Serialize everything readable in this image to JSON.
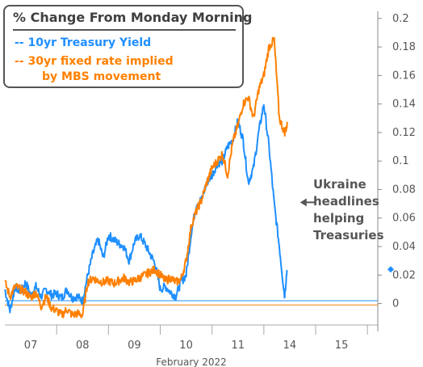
{
  "chart_data": {
    "type": "line",
    "title": "% Change From Monday Morning",
    "xlabel": "February 2022",
    "ylabel": "",
    "x_ticks": [
      "07",
      "08",
      "09",
      "10",
      "11",
      "14",
      "15"
    ],
    "x_tick_positions": [
      0.5,
      1.5,
      2.5,
      3.5,
      4.5,
      5.5,
      6.5
    ],
    "xlim": [
      0,
      7.2
    ],
    "ylim": [
      -0.015,
      0.205
    ],
    "y_ticks": [
      0,
      0.02,
      0.04,
      0.06,
      0.08,
      0.1,
      0.12,
      0.14,
      0.16,
      0.18,
      0.2
    ],
    "y_tick_labels": [
      "0",
      "0.02",
      "0.04",
      "0.06",
      "0.08",
      "0.1",
      "0.12",
      "0.14",
      "0.16",
      "0.18",
      "0.2"
    ],
    "grid": false,
    "legend_position": "top-left",
    "zero_lines": [
      {
        "y": 0.002,
        "color": "#1f8fff"
      },
      {
        "y": -0.001,
        "color": "#ff8000"
      }
    ],
    "annotation": {
      "text": "Ukraine headlines helping Treasuries",
      "lines": [
        "Ukraine",
        "headlines",
        "helping",
        "Treasuries"
      ],
      "arrow_target": {
        "x": 5.7,
        "y": 0.071
      }
    },
    "end_marker": {
      "x": 7.2,
      "y": 0.024,
      "color": "#1f8fff"
    },
    "series": [
      {
        "name": "10yr Treasury Yield",
        "legend_label": "--  10yr Treasury Yield",
        "color": "#1f8fff",
        "x": [
          0.0,
          0.1,
          0.2,
          0.3,
          0.4,
          0.5,
          0.6,
          0.7,
          0.8,
          0.9,
          1.0,
          1.1,
          1.2,
          1.3,
          1.4,
          1.5,
          1.6,
          1.7,
          1.8,
          1.9,
          2.0,
          2.1,
          2.2,
          2.3,
          2.4,
          2.5,
          2.6,
          2.7,
          2.8,
          2.9,
          3.0,
          3.1,
          3.2,
          3.3,
          3.4,
          3.5,
          3.6,
          3.7,
          3.8,
          3.9,
          4.0,
          4.1,
          4.2,
          4.3,
          4.4,
          4.5,
          4.6,
          4.7,
          4.8,
          4.9,
          5.0,
          5.1,
          5.2,
          5.3,
          5.4,
          5.45
        ],
        "y": [
          0.01,
          -0.005,
          0.012,
          0.008,
          0.015,
          0.006,
          0.012,
          0.005,
          0.01,
          0.006,
          0.007,
          0.004,
          0.01,
          0.004,
          0.005,
          0.002,
          0.02,
          0.035,
          0.045,
          0.032,
          0.048,
          0.045,
          0.042,
          0.04,
          0.03,
          0.043,
          0.048,
          0.042,
          0.035,
          0.028,
          0.01,
          0.012,
          0.008,
          0.005,
          0.015,
          0.02,
          0.05,
          0.07,
          0.073,
          0.085,
          0.09,
          0.098,
          0.1,
          0.11,
          0.115,
          0.128,
          0.115,
          0.085,
          0.095,
          0.12,
          0.14,
          0.11,
          0.07,
          0.04,
          0.005,
          0.025
        ]
      },
      {
        "name": "30yr fixed rate implied by MBS movement",
        "legend_label": "--  30yr fixed rate implied",
        "legend_label_2": "by MBS movement",
        "color": "#ff8000",
        "x": [
          0.0,
          0.1,
          0.2,
          0.3,
          0.4,
          0.5,
          0.6,
          0.7,
          0.8,
          0.9,
          1.0,
          1.1,
          1.2,
          1.3,
          1.4,
          1.5,
          1.6,
          1.7,
          1.8,
          1.9,
          2.0,
          2.1,
          2.2,
          2.3,
          2.4,
          2.5,
          2.6,
          2.7,
          2.8,
          2.9,
          3.0,
          3.1,
          3.2,
          3.3,
          3.4,
          3.5,
          3.6,
          3.7,
          3.8,
          3.9,
          4.0,
          4.1,
          4.2,
          4.3,
          4.4,
          4.5,
          4.6,
          4.7,
          4.8,
          4.9,
          5.0,
          5.1,
          5.2,
          5.3,
          5.4,
          5.45
        ],
        "y": [
          0.015,
          0.005,
          0.012,
          0.01,
          0.008,
          0.004,
          0.008,
          -0.002,
          0.005,
          -0.003,
          -0.005,
          -0.008,
          -0.004,
          -0.008,
          -0.007,
          -0.008,
          0.015,
          0.018,
          0.016,
          0.015,
          0.016,
          0.014,
          0.016,
          0.018,
          0.015,
          0.016,
          0.018,
          0.02,
          0.022,
          0.024,
          0.02,
          0.016,
          0.018,
          0.015,
          0.017,
          0.03,
          0.055,
          0.065,
          0.073,
          0.085,
          0.095,
          0.1,
          0.105,
          0.09,
          0.113,
          0.125,
          0.14,
          0.145,
          0.13,
          0.15,
          0.16,
          0.18,
          0.185,
          0.13,
          0.12,
          0.125
        ]
      }
    ]
  }
}
